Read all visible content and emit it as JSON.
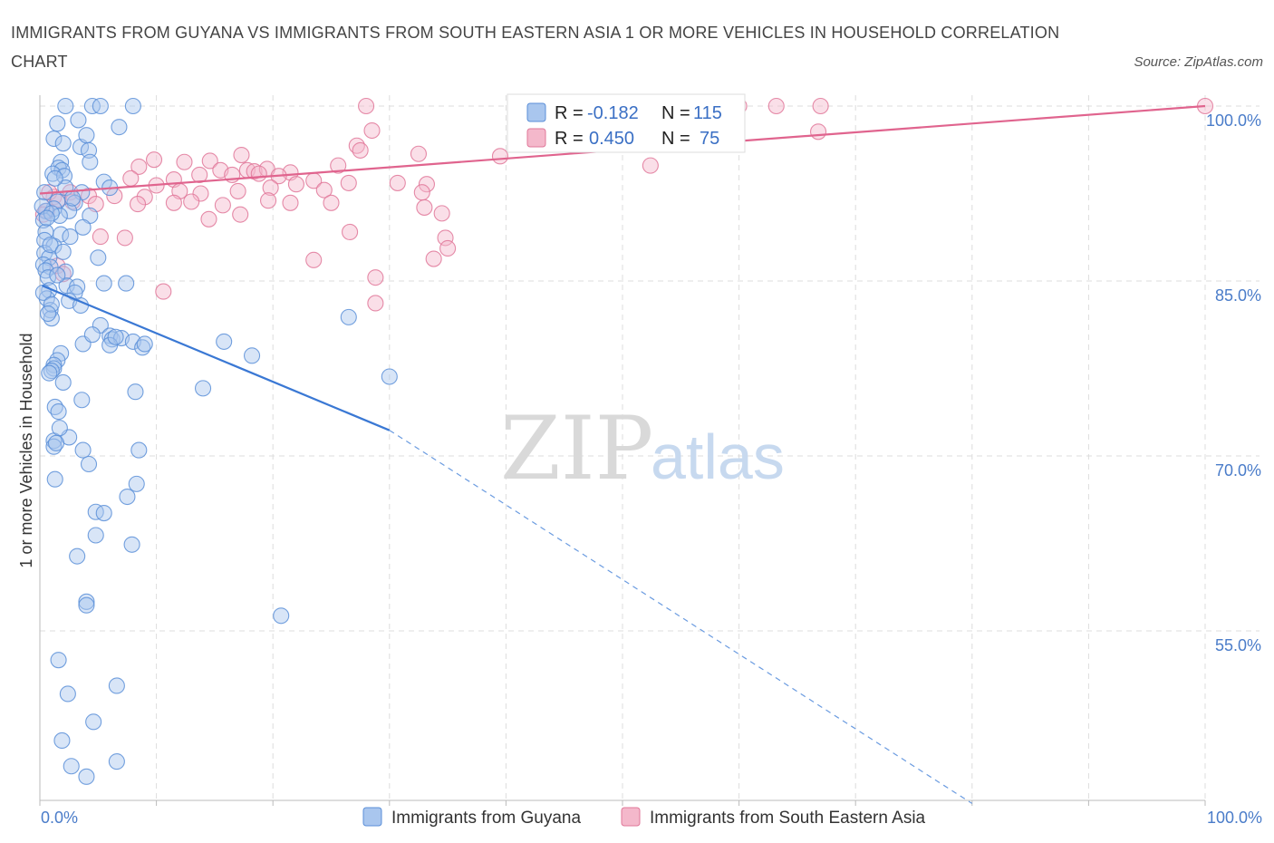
{
  "title": "IMMIGRANTS FROM GUYANA VS IMMIGRANTS FROM SOUTH EASTERN ASIA 1 OR MORE VEHICLES IN HOUSEHOLD CORRELATION CHART",
  "source": "Source: ZipAtlas.com",
  "watermark": {
    "zip": "ZIP",
    "atlas": "atlas"
  },
  "colors": {
    "blue": "#5b8fd8",
    "blue_fill": "#a9c6ee",
    "pink": "#e07799",
    "pink_fill": "#f4b8cb",
    "grid": "#dddddd"
  },
  "legend": {
    "rows": [
      {
        "r_label": "R = ",
        "r_value": "-0.182",
        "n_label": "N = ",
        "n_value": "115"
      },
      {
        "r_label": "R = ",
        "r_value": "0.450",
        "n_label": "N = ",
        "n_value": "75"
      }
    ]
  },
  "chart_data": {
    "type": "scatter",
    "xlabel": "",
    "ylabel": "1 or more Vehicles in Household",
    "xlim": [
      0,
      100
    ],
    "ylim": [
      40,
      100
    ],
    "x_tick_labels": [
      {
        "value": 0,
        "label": "0.0%"
      },
      {
        "value": 100,
        "label": "100.0%"
      }
    ],
    "y_tick_labels": [
      {
        "value": 100,
        "label": "100.0%"
      },
      {
        "value": 85,
        "label": "85.0%"
      },
      {
        "value": 70,
        "label": "70.0%"
      },
      {
        "value": 55,
        "label": "55.0%"
      }
    ],
    "series": [
      {
        "name": "Immigrants from Guyana",
        "color": "#5b8fd8",
        "R": -0.182,
        "N": 115,
        "trend": {
          "x0": 0.2,
          "y0": 84.6,
          "x1": 30,
          "y1": 72.2,
          "dashed_to_x": 80,
          "dashed_to_y": 40.2
        },
        "points": [
          [
            2.2,
            100
          ],
          [
            4.5,
            100
          ],
          [
            5.2,
            100
          ],
          [
            8,
            100
          ],
          [
            1.5,
            98.5
          ],
          [
            3.3,
            98.8
          ],
          [
            6.8,
            98.2
          ],
          [
            1.2,
            97.2
          ],
          [
            2,
            96.8
          ],
          [
            3.5,
            96.5
          ],
          [
            4,
            97.5
          ],
          [
            4.2,
            96.2
          ],
          [
            1.8,
            95.2
          ],
          [
            4.3,
            95.2
          ],
          [
            1.6,
            94.7
          ],
          [
            1.9,
            94.5
          ],
          [
            1.1,
            94.2
          ],
          [
            2.1,
            94
          ],
          [
            5.5,
            93.5
          ],
          [
            6,
            93
          ],
          [
            2.2,
            93
          ],
          [
            3.6,
            92.6
          ],
          [
            1.5,
            91.8
          ],
          [
            3,
            91.7
          ],
          [
            1.2,
            91.2
          ],
          [
            2.5,
            91
          ],
          [
            0.5,
            91
          ],
          [
            1.7,
            90.6
          ],
          [
            4.3,
            90.6
          ],
          [
            0.3,
            90.2
          ],
          [
            3.7,
            89.6
          ],
          [
            0.5,
            89.2
          ],
          [
            1.8,
            89
          ],
          [
            2.6,
            88.8
          ],
          [
            0.4,
            88.5
          ],
          [
            1.2,
            88
          ],
          [
            0.4,
            87.4
          ],
          [
            0.8,
            87
          ],
          [
            5,
            87
          ],
          [
            0.3,
            86.4
          ],
          [
            0.9,
            86.2
          ],
          [
            0.5,
            85.9
          ],
          [
            2.2,
            85.8
          ],
          [
            0.7,
            85.3
          ],
          [
            5.5,
            84.8
          ],
          [
            7.4,
            84.8
          ],
          [
            2.3,
            84.6
          ],
          [
            3.2,
            84.5
          ],
          [
            0.8,
            84.2
          ],
          [
            3,
            84
          ],
          [
            0.6,
            83.5
          ],
          [
            2.5,
            83.3
          ],
          [
            0.9,
            82.5
          ],
          [
            1,
            81.8
          ],
          [
            26.5,
            81.9
          ],
          [
            5.2,
            81.2
          ],
          [
            6,
            80.3
          ],
          [
            6.2,
            80
          ],
          [
            7,
            80.1
          ],
          [
            8,
            79.8
          ],
          [
            15.8,
            79.8
          ],
          [
            3.7,
            79.6
          ],
          [
            6,
            79.5
          ],
          [
            8.8,
            79.3
          ],
          [
            1.8,
            78.8
          ],
          [
            18.2,
            78.6
          ],
          [
            1.5,
            78.2
          ],
          [
            1.2,
            77.8
          ],
          [
            1.2,
            77.5
          ],
          [
            30,
            76.8
          ],
          [
            1,
            77.3
          ],
          [
            14,
            75.8
          ],
          [
            8.2,
            75.5
          ],
          [
            1.3,
            74.2
          ],
          [
            3.6,
            74.8
          ],
          [
            1.6,
            73.8
          ],
          [
            2.5,
            71.6
          ],
          [
            1.2,
            71.3
          ],
          [
            1.2,
            70.8
          ],
          [
            3.7,
            70.5
          ],
          [
            8.5,
            70.5
          ],
          [
            4.2,
            69.3
          ],
          [
            8.3,
            67.6
          ],
          [
            1.3,
            68
          ],
          [
            7.5,
            66.5
          ],
          [
            4.8,
            65.2
          ],
          [
            5.5,
            65.1
          ],
          [
            4.8,
            63.2
          ],
          [
            7.9,
            62.4
          ],
          [
            3.2,
            61.4
          ],
          [
            4,
            57.5
          ],
          [
            4,
            57.2
          ],
          [
            20.7,
            56.3
          ],
          [
            1.6,
            52.5
          ],
          [
            6.6,
            50.3
          ],
          [
            2.4,
            49.6
          ],
          [
            4.6,
            47.2
          ],
          [
            1.9,
            45.6
          ],
          [
            6.6,
            43.8
          ],
          [
            2.7,
            43.4
          ],
          [
            4,
            42.5
          ],
          [
            0.4,
            92.6
          ],
          [
            1.3,
            93.8
          ],
          [
            2.8,
            92.1
          ],
          [
            0.2,
            91.4
          ],
          [
            1,
            90.8
          ],
          [
            0.6,
            90.4
          ],
          [
            0.9,
            88.1
          ],
          [
            2,
            87.5
          ],
          [
            1.5,
            85.5
          ],
          [
            0.3,
            84
          ],
          [
            1,
            83
          ],
          [
            3.5,
            82.9
          ],
          [
            0.7,
            82.2
          ],
          [
            4.5,
            80.4
          ],
          [
            6.5,
            80.2
          ],
          [
            9,
            79.6
          ],
          [
            0.8,
            77.1
          ],
          [
            2,
            76.3
          ],
          [
            1.7,
            72.4
          ],
          [
            1.4,
            71.1
          ]
        ]
      },
      {
        "name": "Immigrants from South Eastern Asia",
        "color": "#e07799",
        "R": 0.45,
        "N": 75,
        "trend": {
          "x0": 0,
          "y0": 92.5,
          "x1": 100,
          "y1": 100
        },
        "points": [
          [
            28,
            100
          ],
          [
            60,
            100
          ],
          [
            63.2,
            100
          ],
          [
            67,
            100
          ],
          [
            100,
            100
          ],
          [
            28.5,
            97.9
          ],
          [
            66.8,
            97.8
          ],
          [
            27.2,
            96.6
          ],
          [
            27.5,
            96.2
          ],
          [
            39.5,
            95.7
          ],
          [
            32.5,
            95.9
          ],
          [
            17.3,
            95.8
          ],
          [
            9.8,
            95.4
          ],
          [
            12.4,
            95.2
          ],
          [
            14.6,
            95.3
          ],
          [
            52.4,
            94.9
          ],
          [
            25.6,
            94.9
          ],
          [
            8.5,
            94.8
          ],
          [
            15.5,
            94.5
          ],
          [
            17.8,
            94.5
          ],
          [
            18.4,
            94.4
          ],
          [
            19.5,
            94.6
          ],
          [
            21.5,
            94.3
          ],
          [
            13.7,
            94.1
          ],
          [
            16.5,
            94.1
          ],
          [
            18.8,
            94.2
          ],
          [
            20.5,
            94
          ],
          [
            11.5,
            93.7
          ],
          [
            7.8,
            93.8
          ],
          [
            10,
            93.2
          ],
          [
            22,
            93.3
          ],
          [
            23.5,
            93.6
          ],
          [
            26.5,
            93.4
          ],
          [
            33.2,
            93.3
          ],
          [
            30.7,
            93.4
          ],
          [
            32.8,
            92.6
          ],
          [
            19.8,
            93
          ],
          [
            17,
            92.7
          ],
          [
            12,
            92.7
          ],
          [
            24.4,
            92.8
          ],
          [
            13.8,
            92.5
          ],
          [
            9,
            92.2
          ],
          [
            6.4,
            92.3
          ],
          [
            4.2,
            92.3
          ],
          [
            2.6,
            92.6
          ],
          [
            1.2,
            92.2
          ],
          [
            0.8,
            92.6
          ],
          [
            1.6,
            92
          ],
          [
            4.8,
            91.6
          ],
          [
            2.8,
            91.8
          ],
          [
            19.6,
            91.9
          ],
          [
            21.5,
            91.7
          ],
          [
            25,
            91.7
          ],
          [
            13,
            91.8
          ],
          [
            11.5,
            91.7
          ],
          [
            8.4,
            91.6
          ],
          [
            15.7,
            91.5
          ],
          [
            17.2,
            90.7
          ],
          [
            34.5,
            90.8
          ],
          [
            0.6,
            91
          ],
          [
            0.3,
            90.7
          ],
          [
            33,
            91.3
          ],
          [
            26.6,
            89.2
          ],
          [
            34.8,
            88.7
          ],
          [
            35,
            87.8
          ],
          [
            5.2,
            88.8
          ],
          [
            7.3,
            88.7
          ],
          [
            33.8,
            86.9
          ],
          [
            23.5,
            86.8
          ],
          [
            28.8,
            85.3
          ],
          [
            10.6,
            84.1
          ],
          [
            28.8,
            83.1
          ],
          [
            1.5,
            86.3
          ],
          [
            2,
            85.6
          ],
          [
            14.5,
            90.3
          ]
        ]
      }
    ],
    "legend_position": "top-center"
  }
}
